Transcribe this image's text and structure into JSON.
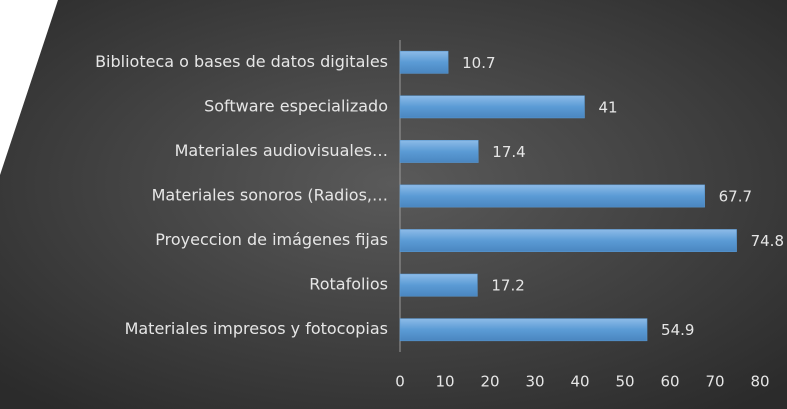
{
  "chart_data": {
    "type": "bar",
    "orientation": "horizontal",
    "categories": [
      "Biblioteca o bases de datos digitales",
      "Software especializado",
      "Materiales audiovisuales…",
      "Materiales sonoros (Radios,…",
      "Proyeccion de imágenes fijas",
      "Rotafolios",
      "Materiales impresos y fotocopias"
    ],
    "values": [
      10.7,
      41,
      17.4,
      67.7,
      74.8,
      17.2,
      54.9
    ],
    "color": "#5b9bd5",
    "xlim": [
      0,
      80
    ],
    "xticks": [
      0,
      10,
      20,
      30,
      40,
      50,
      60,
      70,
      80
    ],
    "grid": false
  }
}
